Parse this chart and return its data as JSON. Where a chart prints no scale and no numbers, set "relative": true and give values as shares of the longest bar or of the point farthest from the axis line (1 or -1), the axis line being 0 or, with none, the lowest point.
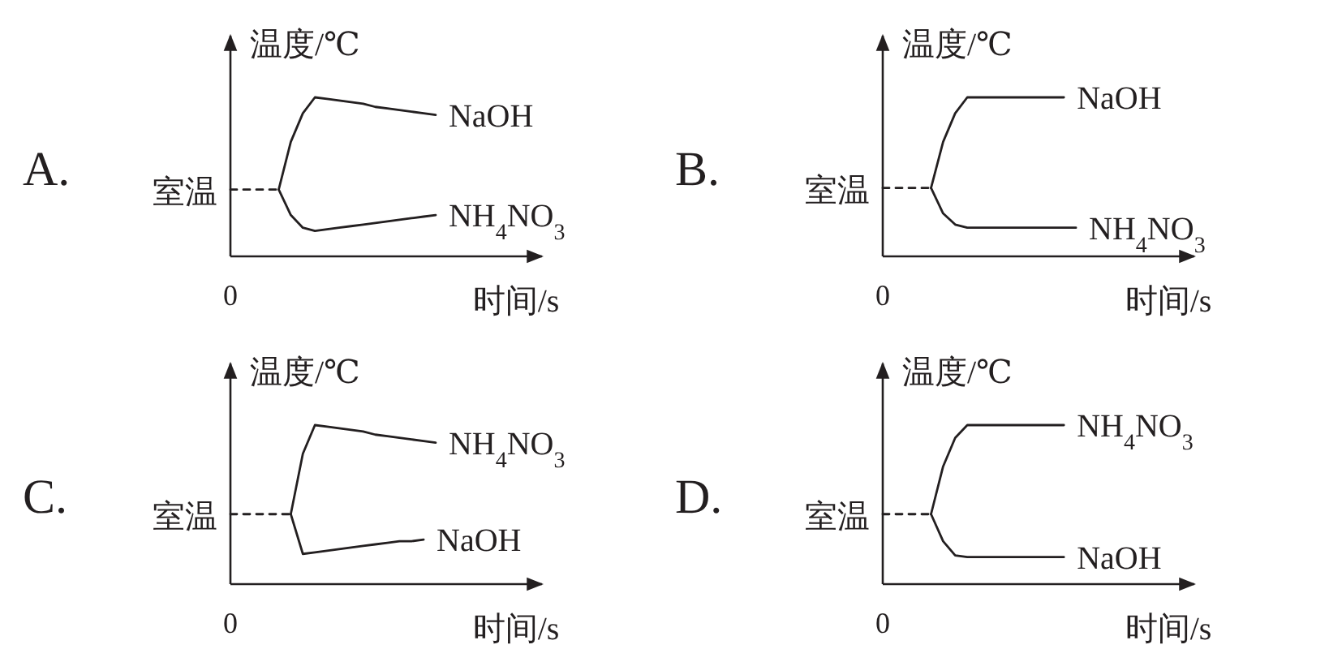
{
  "chart_data": [
    {
      "type": "line",
      "title": "A.",
      "xlabel": "时间/s",
      "ylabel": "温度/℃",
      "relative": true,
      "annotations": [
        "0",
        "室温"
      ],
      "categories": [
        null,
        null,
        null,
        null,
        null,
        null,
        null,
        null,
        null,
        null,
        null,
        null,
        null,
        null,
        null,
        null,
        null,
        null,
        null,
        null,
        null,
        null,
        null,
        null,
        null,
        null
      ],
      "series": [
        {
          "color": "#231f20",
          "line_style": "dashed",
          "values": [
            0.42,
            0.42,
            0.42,
            0.42,
            0.42,
            null,
            null,
            null,
            null,
            null,
            null,
            null,
            null,
            null,
            null,
            null,
            null,
            null,
            null,
            null,
            null,
            null,
            null,
            null,
            null,
            null
          ]
        },
        {
          "name": "NaOH",
          "color": "#231f20",
          "values": [
            null,
            null,
            null,
            null,
            0.42,
            0.72,
            0.9,
            1,
            0.99,
            0.98,
            0.97,
            0.96,
            0.94,
            0.93,
            0.92,
            0.91,
            0.9,
            0.89,
            null,
            null,
            null,
            null,
            null,
            null,
            null,
            null
          ]
        },
        {
          "name": "NH$_{4}$NO$_{3}$",
          "color": "#231f20",
          "values": [
            null,
            null,
            null,
            null,
            0.42,
            0.26,
            0.18,
            0.16,
            0.17,
            0.18,
            0.19,
            0.2,
            0.21,
            0.22,
            0.23,
            0.24,
            0.25,
            0.26,
            null,
            null,
            null,
            null,
            null,
            null,
            null,
            null
          ]
        }
      ]
    },
    {
      "type": "line",
      "title": "B.",
      "xlabel": "时间/s",
      "ylabel": "温度/℃",
      "relative": true,
      "annotations": [
        "0",
        "室温"
      ],
      "categories": [
        null,
        null,
        null,
        null,
        null,
        null,
        null,
        null,
        null,
        null,
        null,
        null,
        null,
        null,
        null,
        null,
        null,
        null,
        null,
        null,
        null,
        null,
        null,
        null,
        null,
        null
      ],
      "series": [
        {
          "color": "#231f20",
          "line_style": "dashed",
          "values": [
            0.43,
            0.43,
            0.43,
            0.43,
            0.43,
            null,
            null,
            null,
            null,
            null,
            null,
            null,
            null,
            null,
            null,
            null,
            null,
            null,
            null,
            null,
            null,
            null,
            null,
            null,
            null,
            null
          ]
        },
        {
          "name": "NaOH",
          "color": "#231f20",
          "values": [
            null,
            null,
            null,
            null,
            0.43,
            0.72,
            0.9,
            1,
            1,
            1,
            1,
            1,
            1,
            1,
            1,
            1,
            null,
            null,
            null,
            null,
            null,
            null,
            null,
            null,
            null,
            null
          ]
        },
        {
          "name": "NH$_{4}$NO$_{3}$",
          "color": "#231f20",
          "values": [
            null,
            null,
            null,
            null,
            0.43,
            0.27,
            0.2,
            0.18,
            0.18,
            0.18,
            0.18,
            0.18,
            0.18,
            0.18,
            0.18,
            0.18,
            0.18,
            null,
            null,
            null,
            null,
            null,
            null,
            null,
            null,
            null
          ]
        }
      ]
    },
    {
      "type": "line",
      "title": "C.",
      "xlabel": "时间/s",
      "ylabel": "温度/℃",
      "relative": true,
      "annotations": [
        "0",
        "室温"
      ],
      "categories": [
        null,
        null,
        null,
        null,
        null,
        null,
        null,
        null,
        null,
        null,
        null,
        null,
        null,
        null,
        null,
        null,
        null,
        null,
        null,
        null,
        null,
        null,
        null,
        null,
        null,
        null
      ],
      "series": [
        {
          "color": "#231f20",
          "line_style": "dashed",
          "values": [
            0.44,
            0.44,
            0.44,
            0.44,
            0.44,
            0.44,
            null,
            null,
            null,
            null,
            null,
            null,
            null,
            null,
            null,
            null,
            null,
            null,
            null,
            null,
            null,
            null,
            null,
            null,
            null,
            null
          ]
        },
        {
          "name": "NH$_{4}$NO$_{3}$",
          "color": "#231f20",
          "values": [
            null,
            null,
            null,
            null,
            null,
            0.44,
            0.82,
            1,
            0.99,
            0.98,
            0.97,
            0.96,
            0.94,
            0.93,
            0.92,
            0.91,
            0.9,
            0.89,
            null,
            null,
            null,
            null,
            null,
            null,
            null,
            null
          ]
        },
        {
          "name": "NaOH",
          "color": "#231f20",
          "values": [
            null,
            null,
            null,
            null,
            null,
            0.44,
            0.19,
            0.2,
            0.21,
            0.22,
            0.23,
            0.24,
            0.25,
            0.26,
            0.27,
            0.27,
            0.28,
            null,
            null,
            null,
            null,
            null,
            null,
            null,
            null,
            null
          ]
        }
      ]
    },
    {
      "type": "line",
      "title": "D.",
      "xlabel": "时间/s",
      "ylabel": "温度/℃",
      "relative": true,
      "annotations": [
        "0",
        "室温"
      ],
      "categories": [
        null,
        null,
        null,
        null,
        null,
        null,
        null,
        null,
        null,
        null,
        null,
        null,
        null,
        null,
        null,
        null,
        null,
        null,
        null,
        null,
        null,
        null,
        null,
        null,
        null,
        null
      ],
      "series": [
        {
          "color": "#231f20",
          "line_style": "dashed",
          "values": [
            0.44,
            0.44,
            0.44,
            0.44,
            0.44,
            null,
            null,
            null,
            null,
            null,
            null,
            null,
            null,
            null,
            null,
            null,
            null,
            null,
            null,
            null,
            null,
            null,
            null,
            null,
            null,
            null
          ]
        },
        {
          "name": "NH$_{4}$NO$_{3}$",
          "color": "#231f20",
          "values": [
            null,
            null,
            null,
            null,
            0.44,
            0.74,
            0.92,
            1,
            1,
            1,
            1,
            1,
            1,
            1,
            1,
            1,
            null,
            null,
            null,
            null,
            null,
            null,
            null,
            null,
            null,
            null
          ]
        },
        {
          "name": "NaOH",
          "color": "#231f20",
          "values": [
            null,
            null,
            null,
            null,
            0.44,
            0.27,
            0.18,
            0.17,
            0.17,
            0.17,
            0.17,
            0.17,
            0.17,
            0.17,
            0.17,
            0.17,
            null,
            null,
            null,
            null,
            null,
            null,
            null,
            null,
            null,
            null
          ]
        }
      ]
    }
  ]
}
